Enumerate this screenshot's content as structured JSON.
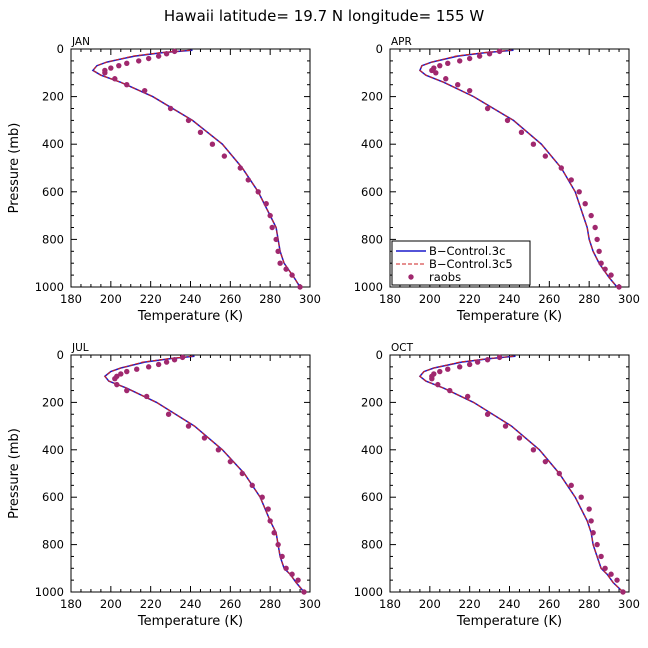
{
  "title": "Hawaii   latitude= 19.7 N longitude= 155 W",
  "colors": {
    "control": "#1a1acc",
    "control5": "#cc2222",
    "raobs": "#a0286e"
  },
  "legend": {
    "panel": 1,
    "entries": [
      "B−Control.3c",
      "B−Control.3c5",
      "raobs"
    ]
  },
  "chart_data": [
    {
      "type": "line",
      "panel": "JAN",
      "xlabel": "Temperature (K)",
      "ylabel": "Pressure (mb)",
      "xlim": [
        180,
        300
      ],
      "ylim": [
        1000,
        0
      ],
      "y_inverted": true,
      "xticks": [
        180,
        200,
        220,
        240,
        260,
        280,
        300
      ],
      "yticks": [
        0,
        200,
        400,
        600,
        800,
        1000
      ],
      "series": [
        {
          "name": "B−Control.3c",
          "style": "solid",
          "x": [
            241,
            226,
            212,
            198,
            193,
            191,
            195,
            205,
            221,
            241,
            256,
            266,
            274,
            280,
            283,
            284,
            285,
            287,
            289,
            292,
            295
          ],
          "y": [
            5,
            15,
            30,
            55,
            70,
            90,
            110,
            140,
            200,
            300,
            400,
            500,
            600,
            700,
            750,
            800,
            850,
            900,
            925,
            960,
            1000
          ]
        },
        {
          "name": "B−Control.3c5",
          "style": "dashed",
          "x": [
            240,
            225,
            211,
            198,
            193,
            191,
            195,
            205,
            221,
            241,
            256,
            266,
            274,
            280,
            283,
            284,
            285,
            287,
            289,
            292,
            295
          ],
          "y": [
            5,
            15,
            30,
            55,
            70,
            90,
            110,
            140,
            200,
            300,
            400,
            500,
            600,
            700,
            750,
            800,
            850,
            900,
            925,
            960,
            1000
          ]
        },
        {
          "name": "raobs",
          "style": "points",
          "x": [
            232,
            228,
            224,
            219,
            214,
            208,
            204,
            200,
            197,
            197,
            202,
            208,
            217,
            230,
            239,
            245,
            251,
            257,
            265,
            269,
            274,
            278,
            280,
            281,
            283,
            284,
            285,
            288,
            291,
            295
          ],
          "y": [
            10,
            20,
            30,
            40,
            50,
            60,
            70,
            80,
            90,
            100,
            125,
            150,
            175,
            250,
            300,
            350,
            400,
            450,
            500,
            550,
            600,
            650,
            700,
            750,
            800,
            850,
            900,
            925,
            950,
            1000
          ]
        }
      ]
    },
    {
      "type": "line",
      "panel": "APR",
      "xlabel": "Temperature (K)",
      "ylabel": "",
      "xlim": [
        180,
        300
      ],
      "ylim": [
        1000,
        0
      ],
      "y_inverted": true,
      "xticks": [
        180,
        200,
        220,
        240,
        260,
        280,
        300
      ],
      "yticks": [
        0,
        200,
        400,
        600,
        800,
        1000
      ],
      "series": [
        {
          "name": "B−Control.3c",
          "style": "solid",
          "x": [
            242,
            228,
            214,
            201,
            196,
            195,
            198,
            207,
            222,
            242,
            256,
            266,
            273,
            277,
            279,
            280,
            282,
            285,
            287,
            290,
            294
          ],
          "y": [
            5,
            15,
            30,
            55,
            70,
            90,
            110,
            140,
            200,
            300,
            400,
            500,
            600,
            700,
            750,
            800,
            850,
            900,
            925,
            960,
            1000
          ]
        },
        {
          "name": "B−Control.3c5",
          "style": "dashed",
          "x": [
            241,
            227,
            213,
            201,
            196,
            195,
            198,
            207,
            222,
            242,
            256,
            266,
            273,
            277,
            279,
            280,
            282,
            285,
            287,
            290,
            294
          ],
          "y": [
            5,
            15,
            30,
            55,
            70,
            90,
            110,
            140,
            200,
            300,
            400,
            500,
            600,
            700,
            750,
            800,
            850,
            900,
            925,
            960,
            1000
          ]
        },
        {
          "name": "raobs",
          "style": "points",
          "x": [
            235,
            230,
            225,
            220,
            215,
            209,
            205,
            202,
            201,
            203,
            208,
            214,
            220,
            229,
            239,
            246,
            252,
            258,
            266,
            271,
            275,
            278,
            281,
            283,
            284,
            285,
            286,
            288,
            291,
            295
          ],
          "y": [
            10,
            20,
            30,
            40,
            50,
            60,
            70,
            80,
            90,
            100,
            125,
            150,
            175,
            250,
            300,
            350,
            400,
            450,
            500,
            550,
            600,
            650,
            700,
            750,
            800,
            850,
            900,
            925,
            950,
            1000
          ]
        }
      ]
    },
    {
      "type": "line",
      "panel": "JUL",
      "xlabel": "Temperature (K)",
      "ylabel": "Pressure (mb)",
      "xlim": [
        180,
        300
      ],
      "ylim": [
        1000,
        0
      ],
      "y_inverted": true,
      "xticks": [
        180,
        200,
        220,
        240,
        260,
        280,
        300
      ],
      "yticks": [
        0,
        200,
        400,
        600,
        800,
        1000
      ],
      "series": [
        {
          "name": "B−Control.3c",
          "style": "solid",
          "x": [
            242,
            230,
            217,
            205,
            200,
            197,
            199,
            208,
            223,
            242,
            256,
            267,
            275,
            280,
            283,
            284,
            285,
            287,
            290,
            293,
            297
          ],
          "y": [
            5,
            15,
            30,
            55,
            70,
            90,
            110,
            140,
            200,
            300,
            400,
            500,
            600,
            700,
            750,
            800,
            850,
            900,
            925,
            960,
            1000
          ]
        },
        {
          "name": "B−Control.3c5",
          "style": "dashed",
          "x": [
            241,
            229,
            216,
            205,
            200,
            197,
            199,
            208,
            223,
            242,
            256,
            267,
            275,
            280,
            283,
            284,
            285,
            287,
            290,
            293,
            297
          ],
          "y": [
            5,
            15,
            30,
            55,
            70,
            90,
            110,
            140,
            200,
            300,
            400,
            500,
            600,
            700,
            750,
            800,
            850,
            900,
            925,
            960,
            1000
          ]
        },
        {
          "name": "raobs",
          "style": "points",
          "x": [
            236,
            232,
            228,
            224,
            219,
            213,
            208,
            205,
            203,
            202,
            203,
            208,
            218,
            229,
            239,
            247,
            254,
            260,
            266,
            271,
            276,
            279,
            280,
            282,
            284,
            286,
            288,
            291,
            294,
            297
          ],
          "y": [
            10,
            20,
            30,
            40,
            50,
            60,
            70,
            80,
            90,
            100,
            125,
            150,
            175,
            250,
            300,
            350,
            400,
            450,
            500,
            550,
            600,
            650,
            700,
            750,
            800,
            850,
            900,
            925,
            950,
            1000
          ]
        }
      ]
    },
    {
      "type": "line",
      "panel": "OCT",
      "xlabel": "Temperature (K)",
      "ylabel": "",
      "xlim": [
        180,
        300
      ],
      "ylim": [
        1000,
        0
      ],
      "y_inverted": true,
      "xticks": [
        180,
        200,
        220,
        240,
        260,
        280,
        300
      ],
      "yticks": [
        0,
        200,
        400,
        600,
        800,
        1000
      ],
      "series": [
        {
          "name": "B−Control.3c",
          "style": "solid",
          "x": [
            243,
            230,
            216,
            202,
            197,
            195,
            198,
            207,
            222,
            241,
            255,
            265,
            273,
            279,
            281,
            282,
            284,
            286,
            289,
            292,
            297
          ],
          "y": [
            5,
            15,
            30,
            55,
            70,
            90,
            110,
            140,
            200,
            300,
            400,
            500,
            600,
            700,
            750,
            800,
            850,
            900,
            925,
            960,
            1000
          ]
        },
        {
          "name": "B−Control.3c5",
          "style": "dashed",
          "x": [
            242,
            229,
            215,
            202,
            197,
            195,
            198,
            207,
            222,
            241,
            255,
            265,
            273,
            279,
            281,
            282,
            284,
            286,
            289,
            292,
            297
          ],
          "y": [
            5,
            15,
            30,
            55,
            70,
            90,
            110,
            140,
            200,
            300,
            400,
            500,
            600,
            700,
            750,
            800,
            850,
            900,
            925,
            960,
            1000
          ]
        },
        {
          "name": "raobs",
          "style": "points",
          "x": [
            235,
            229,
            224,
            220,
            215,
            209,
            205,
            202,
            201,
            201,
            204,
            210,
            219,
            229,
            238,
            245,
            252,
            258,
            265,
            271,
            276,
            280,
            281,
            282,
            284,
            286,
            288,
            291,
            294,
            297
          ],
          "y": [
            10,
            20,
            30,
            40,
            50,
            60,
            70,
            80,
            90,
            100,
            125,
            150,
            175,
            250,
            300,
            350,
            400,
            450,
            500,
            550,
            600,
            650,
            700,
            750,
            800,
            850,
            900,
            925,
            950,
            1000
          ]
        }
      ]
    }
  ]
}
